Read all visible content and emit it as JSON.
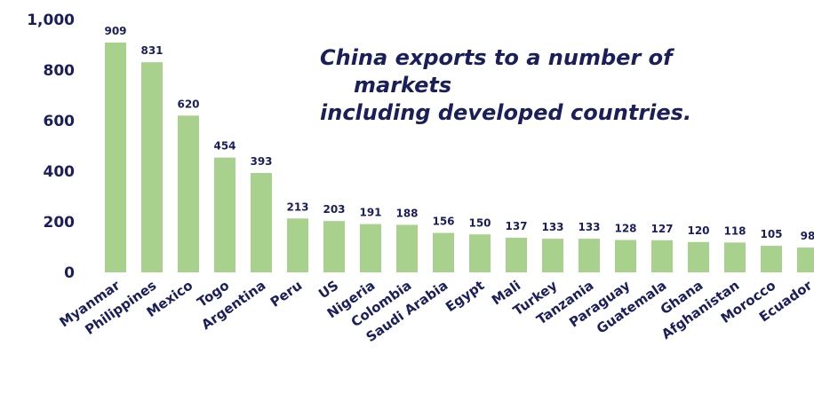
{
  "chart_data": {
    "type": "bar",
    "title": "",
    "xlabel": "",
    "ylabel": "",
    "ylim": [
      0,
      1000
    ],
    "yticks": [
      "0",
      "200",
      "400",
      "600",
      "800",
      "1,000"
    ],
    "grid": false,
    "bar_color": "#a9d18e",
    "text_color": "#1a1f5c",
    "categories": [
      "Myanmar",
      "Philippines",
      "Mexico",
      "Togo",
      "Argentina",
      "Peru",
      "US",
      "Nigeria",
      "Colombia",
      "Saudi Arabia",
      "Egypt",
      "Mali",
      "Turkey",
      "Tanzania",
      "Paraguay",
      "Guatemala",
      "Ghana",
      "Afghanistan",
      "Morocco",
      "Ecuador"
    ],
    "values": [
      909,
      831,
      620,
      454,
      393,
      213,
      203,
      191,
      188,
      156,
      150,
      137,
      133,
      133,
      128,
      127,
      120,
      118,
      105,
      98
    ],
    "annotation": {
      "line1": "China exports to a number of",
      "line2": "markets",
      "line3": "including developed countries."
    }
  }
}
